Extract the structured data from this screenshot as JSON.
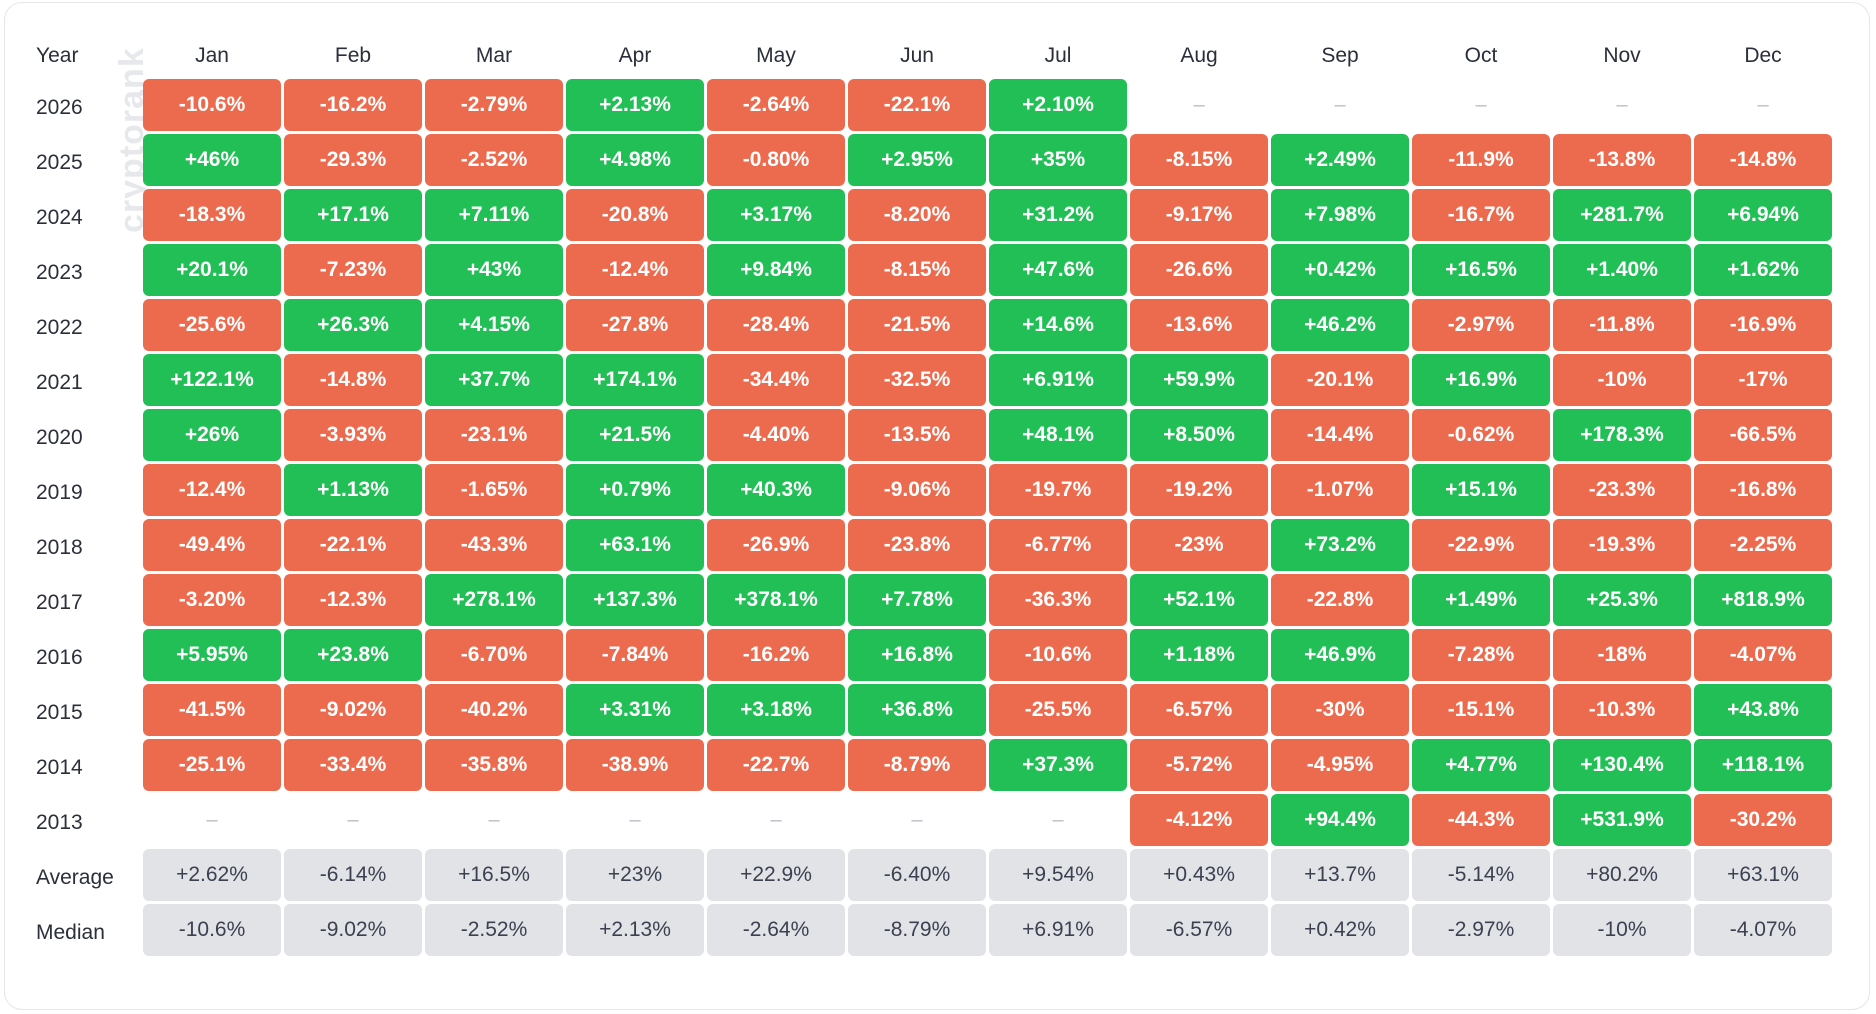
{
  "header": {
    "year_label": "Year",
    "months": [
      "Jan",
      "Feb",
      "Mar",
      "Apr",
      "May",
      "Jun",
      "Jul",
      "Aug",
      "Sep",
      "Oct",
      "Nov",
      "Dec"
    ]
  },
  "watermark": "cryptorank",
  "colors": {
    "negative": "#ec6b4f",
    "positive": "#21bf55",
    "summary": "#e1e3e7",
    "empty_dash": "#b9bdc4"
  },
  "chart_data": {
    "type": "heatmap",
    "title": "",
    "x": [
      "Jan",
      "Feb",
      "Mar",
      "Apr",
      "May",
      "Jun",
      "Jul",
      "Aug",
      "Sep",
      "Oct",
      "Nov",
      "Dec"
    ],
    "rows": [
      {
        "year": "2026",
        "values": [
          "-10.6%",
          "-16.2%",
          "-2.79%",
          "+2.13%",
          "-2.64%",
          "-22.1%",
          "+2.10%",
          "–",
          "–",
          "–",
          "–",
          "–"
        ]
      },
      {
        "year": "2025",
        "values": [
          "+46%",
          "-29.3%",
          "-2.52%",
          "+4.98%",
          "-0.80%",
          "+2.95%",
          "+35%",
          "-8.15%",
          "+2.49%",
          "-11.9%",
          "-13.8%",
          "-14.8%"
        ]
      },
      {
        "year": "2024",
        "values": [
          "-18.3%",
          "+17.1%",
          "+7.11%",
          "-20.8%",
          "+3.17%",
          "-8.20%",
          "+31.2%",
          "-9.17%",
          "+7.98%",
          "-16.7%",
          "+281.7%",
          "+6.94%"
        ]
      },
      {
        "year": "2023",
        "values": [
          "+20.1%",
          "-7.23%",
          "+43%",
          "-12.4%",
          "+9.84%",
          "-8.15%",
          "+47.6%",
          "-26.6%",
          "+0.42%",
          "+16.5%",
          "+1.40%",
          "+1.62%"
        ]
      },
      {
        "year": "2022",
        "values": [
          "-25.6%",
          "+26.3%",
          "+4.15%",
          "-27.8%",
          "-28.4%",
          "-21.5%",
          "+14.6%",
          "-13.6%",
          "+46.2%",
          "-2.97%",
          "-11.8%",
          "-16.9%"
        ]
      },
      {
        "year": "2021",
        "values": [
          "+122.1%",
          "-14.8%",
          "+37.7%",
          "+174.1%",
          "-34.4%",
          "-32.5%",
          "+6.91%",
          "+59.9%",
          "-20.1%",
          "+16.9%",
          "-10%",
          "-17%"
        ]
      },
      {
        "year": "2020",
        "values": [
          "+26%",
          "-3.93%",
          "-23.1%",
          "+21.5%",
          "-4.40%",
          "-13.5%",
          "+48.1%",
          "+8.50%",
          "-14.4%",
          "-0.62%",
          "+178.3%",
          "-66.5%"
        ]
      },
      {
        "year": "2019",
        "values": [
          "-12.4%",
          "+1.13%",
          "-1.65%",
          "+0.79%",
          "+40.3%",
          "-9.06%",
          "-19.7%",
          "-19.2%",
          "-1.07%",
          "+15.1%",
          "-23.3%",
          "-16.8%"
        ]
      },
      {
        "year": "2018",
        "values": [
          "-49.4%",
          "-22.1%",
          "-43.3%",
          "+63.1%",
          "-26.9%",
          "-23.8%",
          "-6.77%",
          "-23%",
          "+73.2%",
          "-22.9%",
          "-19.3%",
          "-2.25%"
        ]
      },
      {
        "year": "2017",
        "values": [
          "-3.20%",
          "-12.3%",
          "+278.1%",
          "+137.3%",
          "+378.1%",
          "+7.78%",
          "-36.3%",
          "+52.1%",
          "-22.8%",
          "+1.49%",
          "+25.3%",
          "+818.9%"
        ]
      },
      {
        "year": "2016",
        "values": [
          "+5.95%",
          "+23.8%",
          "-6.70%",
          "-7.84%",
          "-16.2%",
          "+16.8%",
          "-10.6%",
          "+1.18%",
          "+46.9%",
          "-7.28%",
          "-18%",
          "-4.07%"
        ]
      },
      {
        "year": "2015",
        "values": [
          "-41.5%",
          "-9.02%",
          "-40.2%",
          "+3.31%",
          "+3.18%",
          "+36.8%",
          "-25.5%",
          "-6.57%",
          "-30%",
          "-15.1%",
          "-10.3%",
          "+43.8%"
        ]
      },
      {
        "year": "2014",
        "values": [
          "-25.1%",
          "-33.4%",
          "-35.8%",
          "-38.9%",
          "-22.7%",
          "-8.79%",
          "+37.3%",
          "-5.72%",
          "-4.95%",
          "+4.77%",
          "+130.4%",
          "+118.1%"
        ]
      },
      {
        "year": "2013",
        "values": [
          "–",
          "–",
          "–",
          "–",
          "–",
          "–",
          "–",
          "-4.12%",
          "+94.4%",
          "-44.3%",
          "+531.9%",
          "-30.2%"
        ]
      }
    ],
    "summary": [
      {
        "label": "Average",
        "values": [
          "+2.62%",
          "-6.14%",
          "+16.5%",
          "+23%",
          "+22.9%",
          "-6.40%",
          "+9.54%",
          "+0.43%",
          "+13.7%",
          "-5.14%",
          "+80.2%",
          "+63.1%"
        ]
      },
      {
        "label": "Median",
        "values": [
          "-10.6%",
          "-9.02%",
          "-2.52%",
          "+2.13%",
          "-2.64%",
          "-8.79%",
          "+6.91%",
          "-6.57%",
          "+0.42%",
          "-2.97%",
          "-10%",
          "-4.07%"
        ]
      }
    ]
  }
}
